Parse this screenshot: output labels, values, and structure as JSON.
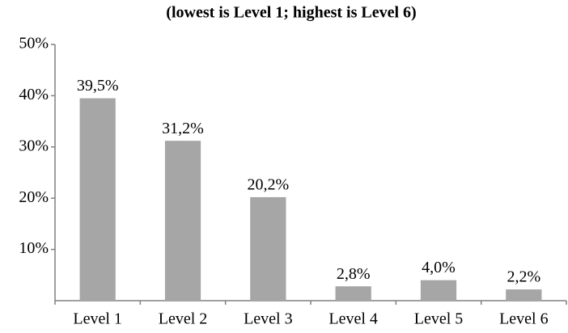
{
  "chart_data": {
    "type": "bar",
    "title": "(lowest is Level 1; highest is Level 6)",
    "categories": [
      "Level 1",
      "Level 2",
      "Level 3",
      "Level 4",
      "Level 5",
      "Level 6"
    ],
    "values": [
      39.5,
      31.2,
      20.2,
      2.8,
      4.0,
      2.2
    ],
    "value_labels": [
      "39,5%",
      "31,2%",
      "20,2%",
      "2,8%",
      "4,0%",
      "2,2%"
    ],
    "color": "#a6a6a6",
    "ylim": [
      0,
      50
    ],
    "yticks": [
      {
        "value": 10,
        "label": "10%"
      },
      {
        "value": 20,
        "label": "20%"
      },
      {
        "value": 30,
        "label": "30%"
      },
      {
        "value": 40,
        "label": "40%"
      },
      {
        "value": 50,
        "label": "50%"
      }
    ],
    "grid": false
  }
}
